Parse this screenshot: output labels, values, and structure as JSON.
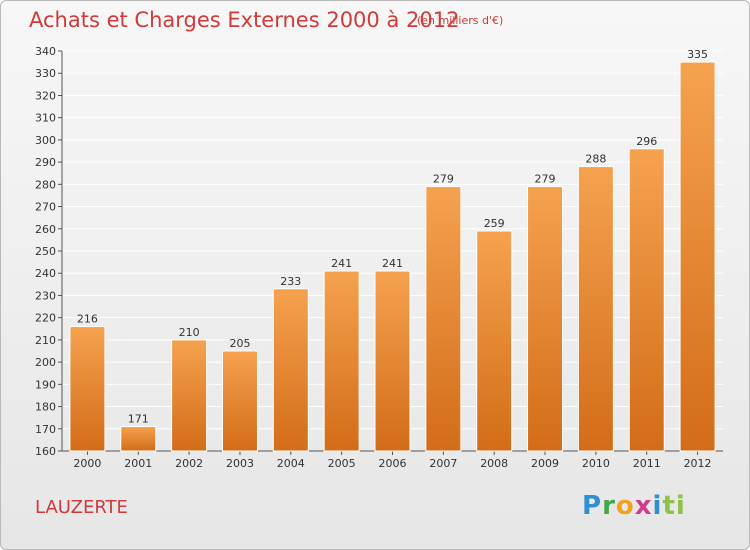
{
  "header": {
    "title": "Achats et Charges Externes 2000 à 2012",
    "unit": "(en milliers d'€)"
  },
  "footer": {
    "place": "LAUZERTE",
    "brand": [
      "P",
      "r",
      "o",
      "x",
      "i",
      "ti"
    ]
  },
  "colors": {
    "title": "#d03a3a",
    "bar_top": "#f5a24f",
    "bar_bottom": "#d36c18",
    "grid": "#ffffff"
  },
  "chart_data": {
    "type": "bar",
    "categories": [
      "2000",
      "2001",
      "2002",
      "2003",
      "2004",
      "2005",
      "2006",
      "2007",
      "2008",
      "2009",
      "2010",
      "2011",
      "2012"
    ],
    "values": [
      216,
      171,
      210,
      205,
      233,
      241,
      241,
      279,
      259,
      279,
      288,
      296,
      335
    ],
    "title": "Achats et Charges Externes 2000 à 2012",
    "xlabel": "",
    "ylabel": "",
    "ylim": [
      160,
      340
    ],
    "yticks": [
      160,
      170,
      180,
      190,
      200,
      210,
      220,
      230,
      240,
      250,
      260,
      270,
      280,
      290,
      300,
      310,
      320,
      330,
      340
    ],
    "grid": true,
    "data_labels": true
  }
}
